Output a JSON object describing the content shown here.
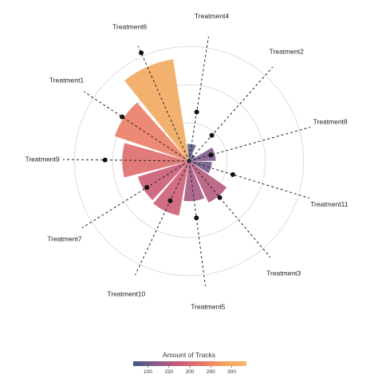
{
  "chart_data": {
    "type": "radial_bar",
    "title": "",
    "subtitle": "",
    "categories": [
      "Treatment4",
      "Treatment2",
      "Treatment8",
      "Treatment11",
      "Treatment3",
      "Treatment5",
      "Treatment10",
      "Treatment7",
      "Treatment9",
      "Treatment1",
      "Treatment6"
    ],
    "series": [
      {
        "values": [
          45,
          20,
          70,
          60,
          120,
          105,
          145,
          140,
          175,
          205,
          270
        ],
        "marker_values": [
          130,
          90,
          60,
          120,
          125,
          150,
          115,
          130,
          220,
          210,
          310
        ]
      }
    ],
    "radial_grid": [
      100,
      200,
      300
    ],
    "radius_max": 330,
    "grid": true,
    "legend": {
      "title": "Amount of Tracks",
      "position": "bottom",
      "ticks": [
        "100",
        "150",
        "200",
        "250",
        "300"
      ],
      "tick_values": [
        100,
        150,
        200,
        250,
        300
      ],
      "range": [
        65,
        335
      ],
      "palette": [
        "#3d5a80",
        "#8a5a8a",
        "#c85a78",
        "#e87468",
        "#f1a15c",
        "#f5b868"
      ]
    }
  }
}
